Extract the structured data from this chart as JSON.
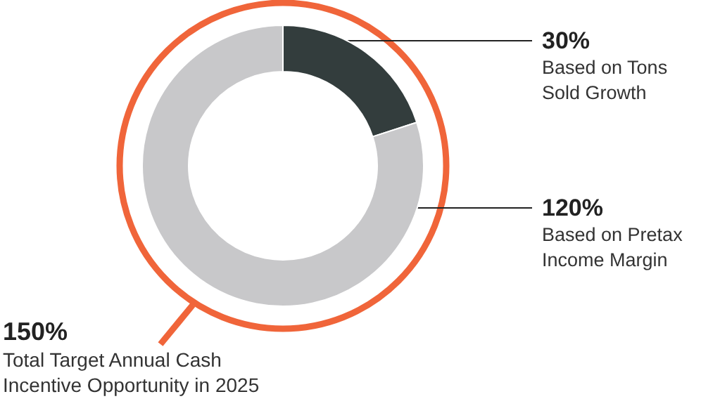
{
  "chart_data": {
    "type": "donut",
    "categories": [
      "Based on Tons Sold Growth",
      "Based on Pretax Income Margin"
    ],
    "values": [
      30,
      120
    ],
    "colors": [
      "#333d3d",
      "#c8c8ca"
    ],
    "value_labels": [
      "30%",
      "120%"
    ],
    "annotations": [
      "150%",
      "Total Target Annual Cash Incentive Opportunity in 2025"
    ],
    "legend": false
  }
}
